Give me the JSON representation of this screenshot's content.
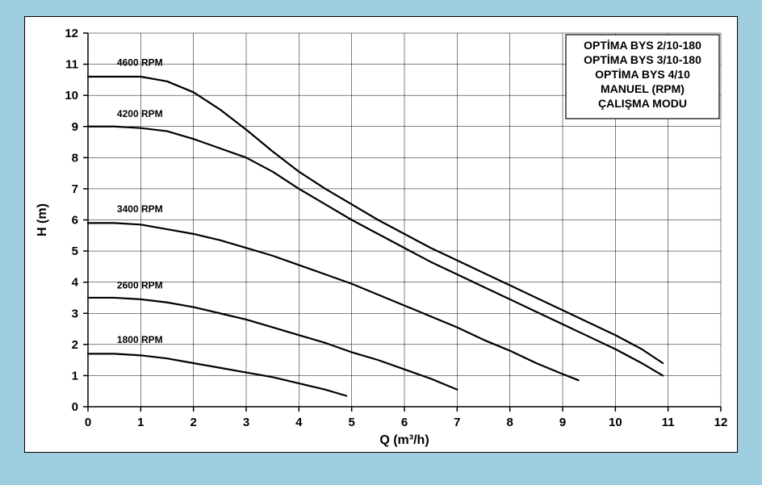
{
  "chart": {
    "type": "line",
    "background_color": "#ffffff",
    "page_background": "#9ecde0",
    "xlabel": "Q (m³/h)",
    "ylabel": "H (m)",
    "label_fontsize": 16,
    "tick_fontsize": 15,
    "xlim": [
      0,
      12
    ],
    "ylim": [
      0,
      12
    ],
    "xtick_step": 1,
    "ytick_step": 1,
    "grid_color": "#000000",
    "grid_width": 0.5,
    "axis_width": 1.5,
    "curve_color": "#000000",
    "curve_width": 2.2,
    "curves": [
      {
        "label": "1800  RPM",
        "label_x": 0.55,
        "label_y": 2.05,
        "points": [
          [
            0,
            1.7
          ],
          [
            0.5,
            1.7
          ],
          [
            1.0,
            1.65
          ],
          [
            1.5,
            1.55
          ],
          [
            2.0,
            1.4
          ],
          [
            2.5,
            1.25
          ],
          [
            3.0,
            1.1
          ],
          [
            3.5,
            0.95
          ],
          [
            4.0,
            0.75
          ],
          [
            4.5,
            0.55
          ],
          [
            4.9,
            0.35
          ]
        ]
      },
      {
        "label": "2600  RPM",
        "label_x": 0.55,
        "label_y": 3.8,
        "points": [
          [
            0,
            3.5
          ],
          [
            0.5,
            3.5
          ],
          [
            1.0,
            3.45
          ],
          [
            1.5,
            3.35
          ],
          [
            2.0,
            3.2
          ],
          [
            2.5,
            3.0
          ],
          [
            3.0,
            2.8
          ],
          [
            3.5,
            2.55
          ],
          [
            4.0,
            2.3
          ],
          [
            4.5,
            2.05
          ],
          [
            5.0,
            1.75
          ],
          [
            5.5,
            1.5
          ],
          [
            6.0,
            1.2
          ],
          [
            6.5,
            0.9
          ],
          [
            7.0,
            0.55
          ]
        ]
      },
      {
        "label": "3400  RPM",
        "label_x": 0.55,
        "label_y": 6.25,
        "points": [
          [
            0,
            5.9
          ],
          [
            0.5,
            5.9
          ],
          [
            1.0,
            5.85
          ],
          [
            1.5,
            5.7
          ],
          [
            2.0,
            5.55
          ],
          [
            2.5,
            5.35
          ],
          [
            3.0,
            5.1
          ],
          [
            3.5,
            4.85
          ],
          [
            4.0,
            4.55
          ],
          [
            4.5,
            4.25
          ],
          [
            5.0,
            3.95
          ],
          [
            5.5,
            3.6
          ],
          [
            6.0,
            3.25
          ],
          [
            6.5,
            2.9
          ],
          [
            7.0,
            2.55
          ],
          [
            7.5,
            2.15
          ],
          [
            8.0,
            1.8
          ],
          [
            8.5,
            1.4
          ],
          [
            9.0,
            1.05
          ],
          [
            9.3,
            0.85
          ]
        ]
      },
      {
        "label": "4200  RPM",
        "label_x": 0.55,
        "label_y": 9.3,
        "points": [
          [
            0,
            9.0
          ],
          [
            0.5,
            9.0
          ],
          [
            1.0,
            8.95
          ],
          [
            1.5,
            8.85
          ],
          [
            2.0,
            8.6
          ],
          [
            2.5,
            8.3
          ],
          [
            3.0,
            8.0
          ],
          [
            3.5,
            7.55
          ],
          [
            4.0,
            7.0
          ],
          [
            4.5,
            6.5
          ],
          [
            5.0,
            6.0
          ],
          [
            5.5,
            5.55
          ],
          [
            6.0,
            5.1
          ],
          [
            6.5,
            4.65
          ],
          [
            7.0,
            4.25
          ],
          [
            7.5,
            3.85
          ],
          [
            8.0,
            3.45
          ],
          [
            8.5,
            3.05
          ],
          [
            9.0,
            2.65
          ],
          [
            9.5,
            2.25
          ],
          [
            10.0,
            1.85
          ],
          [
            10.5,
            1.4
          ],
          [
            10.9,
            1.0
          ]
        ]
      },
      {
        "label": "4600  RPM",
        "label_x": 0.55,
        "label_y": 10.95,
        "points": [
          [
            0,
            10.6
          ],
          [
            0.5,
            10.6
          ],
          [
            1.0,
            10.6
          ],
          [
            1.5,
            10.45
          ],
          [
            2.0,
            10.1
          ],
          [
            2.5,
            9.55
          ],
          [
            3.0,
            8.9
          ],
          [
            3.5,
            8.2
          ],
          [
            4.0,
            7.55
          ],
          [
            4.5,
            7.0
          ],
          [
            5.0,
            6.5
          ],
          [
            5.5,
            6.0
          ],
          [
            6.0,
            5.55
          ],
          [
            6.5,
            5.1
          ],
          [
            7.0,
            4.7
          ],
          [
            7.5,
            4.3
          ],
          [
            8.0,
            3.9
          ],
          [
            8.5,
            3.5
          ],
          [
            9.0,
            3.1
          ],
          [
            9.5,
            2.7
          ],
          [
            10.0,
            2.3
          ],
          [
            10.5,
            1.85
          ],
          [
            10.9,
            1.4
          ]
        ]
      }
    ],
    "legend": {
      "lines": [
        "OPTİMA BYS 2/10-180",
        "OPTİMA BYS 3/10-180",
        "OPTİMA BYS 4/10",
        "MANUEL (RPM)",
        "ÇALIŞMA MODU"
      ],
      "border_color": "#000000",
      "background": "#ffffff",
      "fontsize": 14
    }
  }
}
